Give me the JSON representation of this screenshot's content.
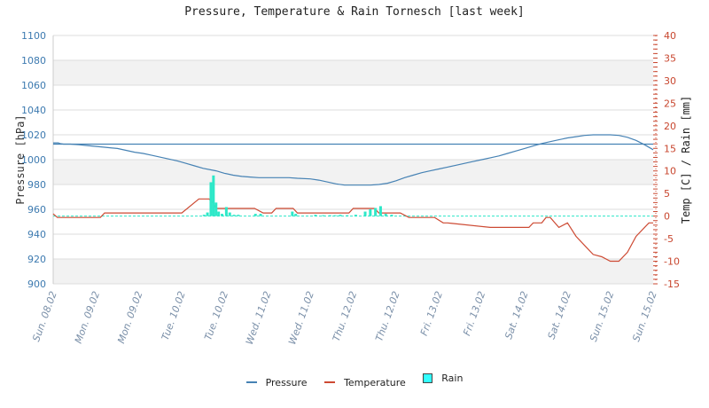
{
  "title": "Pressure, Temperature & Rain Tornesch [last week]",
  "colors": {
    "pressure": "#4682b4",
    "temperature": "#cd4a33",
    "rain": "#2de8c8",
    "rain_legend": "#33ffff",
    "left_axis": "#3d7ab0",
    "right_axis": "#c8462e",
    "band": "#f2f2f2",
    "grid": "#dddddd"
  },
  "legend": {
    "pressure": "Pressure",
    "temperature": "Temperature",
    "rain": "Rain"
  },
  "chart_data": {
    "type": "line",
    "title": "Pressure, Temperature & Rain Tornesch [last week]",
    "xlabel": "",
    "ylabel": "Pressure [hPa]",
    "y2label": "Temp [C] / Rain [mm]",
    "ylim": [
      900,
      1100
    ],
    "y2lim": [
      -15,
      40
    ],
    "yticks": [
      900,
      920,
      940,
      960,
      980,
      1000,
      1020,
      1040,
      1060,
      1080,
      1100
    ],
    "y2ticks": [
      -15,
      -10,
      -5,
      0,
      5,
      10,
      15,
      20,
      25,
      30,
      35,
      40
    ],
    "x_tick_labels": [
      "Sun. 08.02",
      "Mon. 09.02",
      "Mon. 09.02",
      "Tue. 10.02",
      "Tue. 10.02",
      "Wed. 11.02",
      "Wed. 11.02",
      "Thu. 12.02",
      "Thu. 12.02",
      "Fri. 13.02",
      "Fri. 13.02",
      "Sat. 14.02",
      "Sat. 14.02",
      "Sun. 15.02",
      "Sun. 15.02"
    ],
    "grid": true,
    "legend_position": "bottom",
    "pressure_reference_line": 1012.5,
    "series": [
      {
        "name": "Pressure",
        "axis": "left",
        "x": [
          0,
          0.06,
          0.08,
          0.12,
          0.2,
          0.3,
          0.45,
          0.6,
          0.75,
          0.85,
          0.95,
          1.05,
          1.15,
          1.25,
          1.35,
          1.45,
          1.55,
          1.65,
          1.75,
          1.9,
          2.0,
          2.1,
          2.2,
          2.3,
          2.4,
          2.5,
          2.6,
          2.75,
          2.85,
          3.0,
          3.1,
          3.2,
          3.3,
          3.4,
          3.5,
          3.6,
          3.7,
          3.8,
          3.9,
          4.0,
          4.1,
          4.2,
          4.3,
          4.4,
          4.5,
          4.6,
          4.7,
          4.8,
          4.9,
          5.0,
          5.1,
          5.2,
          5.3,
          5.4,
          5.5,
          5.6,
          5.7,
          5.8,
          5.9,
          6.0,
          6.1,
          6.2,
          6.3,
          6.4,
          6.5,
          6.6,
          6.7,
          6.8,
          6.9,
          7.0
        ],
        "values": [
          1013.5,
          1013.5,
          1013,
          1012.5,
          1012.5,
          1012,
          1011,
          1010,
          1009,
          1007.5,
          1006,
          1005,
          1003.5,
          1002,
          1000.5,
          999,
          997,
          995,
          993,
          991,
          989,
          987.5,
          986.5,
          986,
          985.5,
          985.5,
          985.5,
          985.5,
          985,
          984.5,
          983.5,
          982,
          980.5,
          979.5,
          979.5,
          979.5,
          979.5,
          980,
          981,
          983,
          985.5,
          987.5,
          989.5,
          991,
          992.5,
          994,
          995.5,
          997,
          998.5,
          1000,
          1001.5,
          1003,
          1005,
          1007,
          1009,
          1011,
          1013,
          1014.5,
          1016,
          1017.5,
          1018.5,
          1019.5,
          1020,
          1020,
          1020,
          1019.5,
          1018,
          1015.5,
          1012,
          1008
        ]
      },
      {
        "name": "Temperature",
        "axis": "right",
        "x": [
          0,
          0.05,
          0.3,
          0.55,
          0.6,
          1.5,
          1.7,
          1.82,
          1.85,
          1.9,
          2.35,
          2.45,
          2.55,
          2.6,
          2.8,
          2.85,
          2.9,
          3.3,
          3.45,
          3.5,
          3.6,
          3.75,
          3.8,
          4.0,
          4.05,
          4.15,
          4.45,
          4.55,
          4.6,
          5.1,
          5.2,
          5.3,
          5.4,
          5.5,
          5.55,
          5.6,
          5.7,
          5.75,
          5.8,
          5.9,
          6.0,
          6.1,
          6.2,
          6.3,
          6.4,
          6.5,
          6.6,
          6.7,
          6.8,
          6.95,
          7.0
        ],
        "values": [
          0.5,
          -0.3,
          -0.3,
          -0.3,
          0.7,
          0.7,
          3.8,
          3.8,
          3.2,
          1.7,
          1.7,
          0.7,
          0.7,
          1.7,
          1.7,
          0.7,
          0.7,
          0.7,
          0.7,
          1.7,
          1.7,
          1.7,
          0.7,
          0.7,
          0.7,
          -0.3,
          -0.3,
          -1.5,
          -1.5,
          -2.5,
          -2.5,
          -2.5,
          -2.5,
          -2.5,
          -2.5,
          -1.5,
          -1.5,
          -0.3,
          -0.3,
          -2.5,
          -1.5,
          -4.5,
          -6.5,
          -8.5,
          -9,
          -10,
          -10,
          -8,
          -4.5,
          -1.5,
          -1.5
        ]
      },
      {
        "name": "Rain",
        "axis": "right",
        "type": "bar",
        "x": [
          1.76,
          1.8,
          1.84,
          1.87,
          1.9,
          1.93,
          1.97,
          2.02,
          2.06,
          2.11,
          2.16,
          2.36,
          2.42,
          2.79,
          2.83,
          3.06,
          3.15,
          3.23,
          3.29,
          3.35,
          3.43,
          3.53,
          3.64,
          3.7,
          3.76,
          3.82,
          3.88,
          3.95
        ],
        "values": [
          0.3,
          0.8,
          7.5,
          9,
          3,
          1,
          0.5,
          2,
          0.8,
          0.3,
          0.3,
          0.5,
          0.5,
          1,
          0.5,
          0.3,
          0.2,
          0.2,
          0.2,
          0.3,
          0.2,
          0.3,
          1,
          1.5,
          1.8,
          2.2,
          0.5,
          0.3
        ]
      }
    ]
  }
}
